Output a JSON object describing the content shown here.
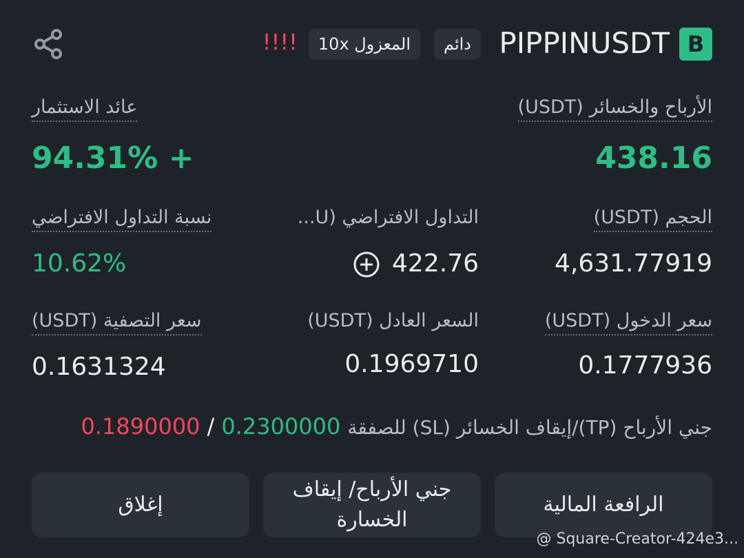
{
  "header": {
    "badge": "B",
    "symbol": "PIPPINUSDT",
    "tags": [
      "دائم",
      "المعزول 10x"
    ],
    "warning": "!!!!"
  },
  "pnl": {
    "label": "الأرباح والخسائر (USDT)",
    "value": "438.16"
  },
  "roi": {
    "label": "عائد الاستثمار",
    "value": "94.31% +"
  },
  "size": {
    "label": "الحجم (USDT)",
    "value": "4,631.77919"
  },
  "margin": {
    "label": "التداول الافتراضي (U...",
    "value": "422.76"
  },
  "margin_ratio": {
    "label": "نسبة التداول الافتراضي",
    "value": "10.62%"
  },
  "entry_price": {
    "label": "سعر الدخول (USDT)",
    "value": "0.1777936"
  },
  "mark_price": {
    "label": "السعر العادل (USDT)",
    "value": "0.1969710"
  },
  "liq_price": {
    "label": "سعر التصفية (USDT)",
    "value": "0.1631324"
  },
  "tpsl": {
    "label": "جني الأرباح (TP)/إيقاف الخسائر (SL) للصفقة",
    "tp": "0.2300000",
    "separator": "/",
    "sl": "0.1890000"
  },
  "buttons": [
    "الرافعة المالية",
    "جني الأرباح/ إيقاف الخسارة",
    "إغلاق"
  ],
  "watermark": "@ Square-Creator-424e3..."
}
